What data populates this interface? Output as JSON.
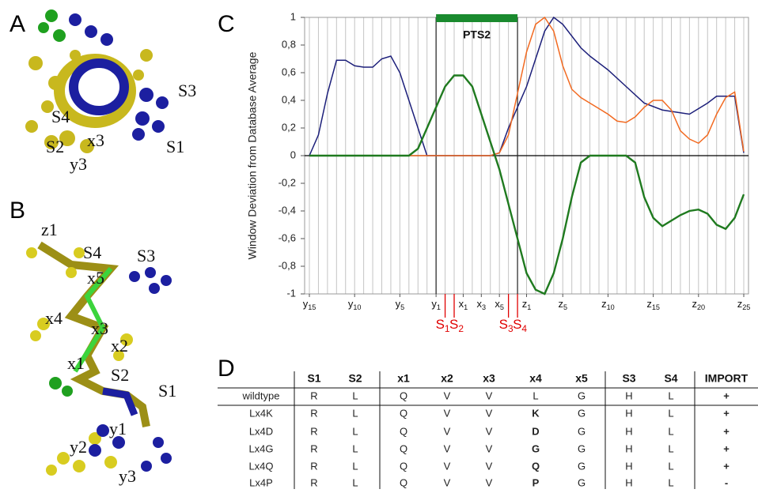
{
  "panels": [
    {
      "letter": "A",
      "labels": [
        "S3",
        "S4",
        "S2",
        "x3",
        "S1",
        "y3"
      ]
    },
    {
      "letter": "B",
      "labels": [
        "z1",
        "S4",
        "S3",
        "x5",
        "x4",
        "x3",
        "x2",
        "x1",
        "S2",
        "S1",
        "y1",
        "y2",
        "y3"
      ]
    }
  ],
  "chart_data": {
    "type": "line",
    "letter": "C",
    "y_label": "Window Deviation from Database Average",
    "xlim": [
      0,
      48
    ],
    "ylim": [
      -1,
      1
    ],
    "xticks": [
      {
        "value": 0,
        "label": "y15"
      },
      {
        "value": 5,
        "label": "y10"
      },
      {
        "value": 10,
        "label": "y5"
      },
      {
        "value": 14,
        "label": "y1"
      },
      {
        "value": 17,
        "label": "x1"
      },
      {
        "value": 19,
        "label": "x3"
      },
      {
        "value": 21,
        "label": "x5"
      },
      {
        "value": 24,
        "label": "z1"
      },
      {
        "value": 28,
        "label": "z5"
      },
      {
        "value": 33,
        "label": "z10"
      },
      {
        "value": 38,
        "label": "z15"
      },
      {
        "value": 43,
        "label": "z20"
      },
      {
        "value": 48,
        "label": "z25"
      }
    ],
    "yticks": [
      {
        "value": -1,
        "label": "-1"
      },
      {
        "value": -0.8,
        "label": "-0,8"
      },
      {
        "value": -0.6,
        "label": "-0,6"
      },
      {
        "value": -0.4,
        "label": "-0,4"
      },
      {
        "value": -0.2,
        "label": "-0,2"
      },
      0,
      {
        "value": 0.2,
        "label": "0,2"
      },
      {
        "value": 0.4,
        "label": "0,4"
      },
      {
        "value": 0.6,
        "label": "0,6"
      },
      {
        "value": 0.8,
        "label": "0,8"
      },
      1
    ],
    "grid": true,
    "region": {
      "label": "PTS2",
      "x": [
        14,
        23
      ],
      "color": "#1a8a2e"
    },
    "markers": [
      {
        "label": "S1",
        "x": 15
      },
      {
        "label": "S2",
        "x": 16
      },
      {
        "label": "S3",
        "x": 22
      },
      {
        "label": "S4",
        "x": 23
      }
    ],
    "marker_color": "#e00000",
    "series": [
      {
        "color": "#1c1f7a",
        "x": [
          0,
          1,
          2,
          3,
          4,
          5,
          6,
          7,
          8,
          9,
          10,
          11,
          12,
          13,
          20,
          21,
          22,
          24,
          26,
          27,
          28,
          30,
          31,
          33,
          35,
          37,
          39,
          41,
          42,
          44,
          45,
          47,
          48
        ],
        "values": [
          0,
          0.15,
          0.45,
          0.69,
          0.69,
          0.65,
          0.64,
          0.64,
          0.7,
          0.72,
          0.6,
          0.4,
          0.2,
          0,
          0,
          0.02,
          0.2,
          0.5,
          0.9,
          1.0,
          0.95,
          0.78,
          0.72,
          0.62,
          0.5,
          0.38,
          0.33,
          0.31,
          0.3,
          0.38,
          0.43,
          0.43,
          0.02
        ]
      },
      {
        "color": "#f26a21",
        "x": [
          0,
          20,
          21,
          22,
          23,
          24,
          25,
          26,
          27,
          28,
          29,
          30,
          31,
          33,
          34,
          35,
          36,
          37,
          38,
          39,
          40,
          41,
          42,
          43,
          44,
          45,
          46,
          47,
          48
        ],
        "values": [
          0,
          0,
          0.02,
          0.15,
          0.45,
          0.75,
          0.95,
          1.0,
          0.9,
          0.65,
          0.48,
          0.42,
          0.38,
          0.3,
          0.25,
          0.24,
          0.28,
          0.35,
          0.4,
          0.4,
          0.33,
          0.18,
          0.12,
          0.09,
          0.15,
          0.3,
          0.42,
          0.46,
          0.03
        ]
      },
      {
        "color": "#1f7a1f",
        "x": [
          0,
          11,
          12,
          13,
          14,
          15,
          16,
          17,
          18,
          19,
          20,
          21,
          22,
          23,
          24,
          25,
          26,
          27,
          28,
          29,
          30,
          31,
          35,
          36,
          37,
          38,
          39,
          40,
          41,
          42,
          43,
          44,
          45,
          46,
          47,
          48
        ],
        "values": [
          0,
          0,
          0.05,
          0.2,
          0.35,
          0.5,
          0.58,
          0.58,
          0.5,
          0.3,
          0.1,
          -0.1,
          -0.35,
          -0.6,
          -0.85,
          -0.97,
          -1.0,
          -0.85,
          -0.6,
          -0.3,
          -0.05,
          0,
          0,
          -0.05,
          -0.3,
          -0.45,
          -0.51,
          -0.47,
          -0.43,
          -0.4,
          -0.39,
          -0.42,
          -0.5,
          -0.53,
          -0.45,
          -0.28
        ]
      }
    ]
  },
  "table": {
    "letter": "D",
    "header": [
      "S1",
      "S2",
      "x1",
      "x2",
      "x3",
      "x4",
      "x5",
      "S3",
      "S4",
      "IMPORT"
    ],
    "rows": [
      [
        "wildtype",
        "R",
        "L",
        "Q",
        "V",
        "V",
        "L",
        "G",
        "H",
        "L",
        "+"
      ],
      [
        "Lx4K",
        "R",
        "L",
        "Q",
        "V",
        "V",
        "K",
        "G",
        "H",
        "L",
        "+"
      ],
      [
        "Lx4D",
        "R",
        "L",
        "Q",
        "V",
        "V",
        "D",
        "G",
        "H",
        "L",
        "+"
      ],
      [
        "Lx4G",
        "R",
        "L",
        "Q",
        "V",
        "V",
        "G",
        "G",
        "H",
        "L",
        "+"
      ],
      [
        "Lx4Q",
        "R",
        "L",
        "Q",
        "V",
        "V",
        "Q",
        "G",
        "H",
        "L",
        "+"
      ],
      [
        "Lx4P",
        "R",
        "L",
        "Q",
        "V",
        "V",
        "P",
        "G",
        "H",
        "L",
        "-"
      ]
    ]
  }
}
